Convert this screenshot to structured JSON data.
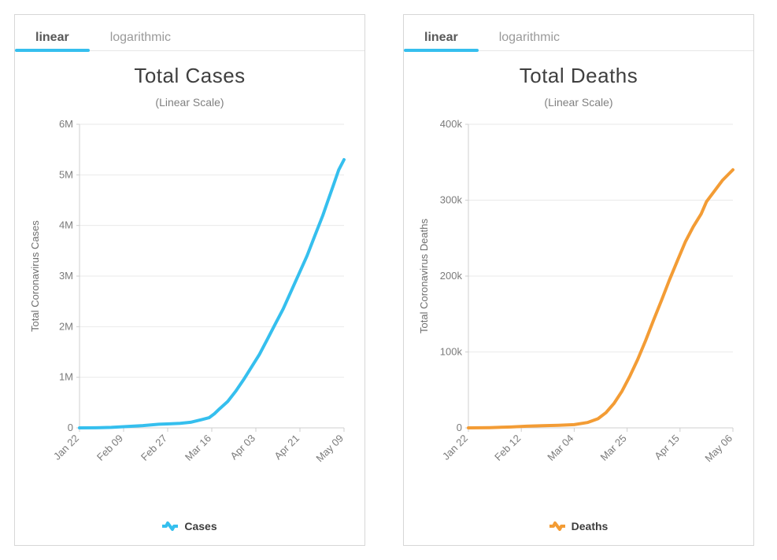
{
  "panels": [
    {
      "id": "cases",
      "tabs": {
        "linear": "linear",
        "log": "logarithmic",
        "active": "linear"
      },
      "accent": "#35bfee",
      "chart": {
        "type": "line",
        "title": "Total Cases",
        "subtitle": "(Linear Scale)",
        "ylabel": "Total Coronavirus Cases",
        "legend_label": "Cases",
        "ylim": [
          0,
          6000000
        ],
        "ytick_step": 1000000,
        "ytick_labels": [
          "0",
          "1M",
          "2M",
          "3M",
          "4M",
          "5M",
          "6M"
        ],
        "x_categories": [
          "Jan 22",
          "Feb 09",
          "Feb 27",
          "Mar 16",
          "Apr 03",
          "Apr 21",
          "May 09"
        ],
        "series_color": "#35bfee",
        "line_width": 4,
        "background_color": "#ffffff",
        "grid_color": "#eaeaea",
        "axis_color": "#cfcfcf",
        "label_fontsize": 13,
        "title_fontsize": 26,
        "data": [
          {
            "x": 0.0,
            "y": 500
          },
          {
            "x": 0.06,
            "y": 2000
          },
          {
            "x": 0.12,
            "y": 10000
          },
          {
            "x": 0.18,
            "y": 28000
          },
          {
            "x": 0.24,
            "y": 45000
          },
          {
            "x": 0.3,
            "y": 72000
          },
          {
            "x": 0.34,
            "y": 80000
          },
          {
            "x": 0.38,
            "y": 88000
          },
          {
            "x": 0.42,
            "y": 110000
          },
          {
            "x": 0.46,
            "y": 160000
          },
          {
            "x": 0.49,
            "y": 200000
          },
          {
            "x": 0.51,
            "y": 280000
          },
          {
            "x": 0.53,
            "y": 380000
          },
          {
            "x": 0.56,
            "y": 520000
          },
          {
            "x": 0.59,
            "y": 720000
          },
          {
            "x": 0.62,
            "y": 950000
          },
          {
            "x": 0.65,
            "y": 1200000
          },
          {
            "x": 0.68,
            "y": 1450000
          },
          {
            "x": 0.71,
            "y": 1750000
          },
          {
            "x": 0.74,
            "y": 2050000
          },
          {
            "x": 0.77,
            "y": 2350000
          },
          {
            "x": 0.8,
            "y": 2700000
          },
          {
            "x": 0.83,
            "y": 3050000
          },
          {
            "x": 0.86,
            "y": 3400000
          },
          {
            "x": 0.89,
            "y": 3800000
          },
          {
            "x": 0.92,
            "y": 4200000
          },
          {
            "x": 0.94,
            "y": 4500000
          },
          {
            "x": 0.96,
            "y": 4800000
          },
          {
            "x": 0.98,
            "y": 5100000
          },
          {
            "x": 1.0,
            "y": 5300000
          }
        ]
      }
    },
    {
      "id": "deaths",
      "tabs": {
        "linear": "linear",
        "log": "logarithmic",
        "active": "linear"
      },
      "accent": "#35bfee",
      "chart": {
        "type": "line",
        "title": "Total Deaths",
        "subtitle": "(Linear Scale)",
        "ylabel": "Total Coronavirus Deaths",
        "legend_label": "Deaths",
        "ylim": [
          0,
          400000
        ],
        "ytick_step": 100000,
        "ytick_labels": [
          "0",
          "100k",
          "200k",
          "300k",
          "400k"
        ],
        "x_categories": [
          "Jan 22",
          "Feb 12",
          "Mar 04",
          "Mar 25",
          "Apr 15",
          "May 06"
        ],
        "series_color": "#f39c35",
        "line_width": 4,
        "background_color": "#ffffff",
        "grid_color": "#eaeaea",
        "axis_color": "#cfcfcf",
        "label_fontsize": 13,
        "title_fontsize": 26,
        "data": [
          {
            "x": 0.0,
            "y": 20
          },
          {
            "x": 0.08,
            "y": 300
          },
          {
            "x": 0.16,
            "y": 1100
          },
          {
            "x": 0.22,
            "y": 2200
          },
          {
            "x": 0.28,
            "y": 2900
          },
          {
            "x": 0.34,
            "y": 3400
          },
          {
            "x": 0.4,
            "y": 4300
          },
          {
            "x": 0.45,
            "y": 7000
          },
          {
            "x": 0.49,
            "y": 12000
          },
          {
            "x": 0.52,
            "y": 20000
          },
          {
            "x": 0.55,
            "y": 32000
          },
          {
            "x": 0.58,
            "y": 48000
          },
          {
            "x": 0.61,
            "y": 68000
          },
          {
            "x": 0.64,
            "y": 90000
          },
          {
            "x": 0.67,
            "y": 115000
          },
          {
            "x": 0.7,
            "y": 142000
          },
          {
            "x": 0.73,
            "y": 168000
          },
          {
            "x": 0.76,
            "y": 195000
          },
          {
            "x": 0.79,
            "y": 220000
          },
          {
            "x": 0.82,
            "y": 245000
          },
          {
            "x": 0.85,
            "y": 265000
          },
          {
            "x": 0.88,
            "y": 282000
          },
          {
            "x": 0.9,
            "y": 298000
          },
          {
            "x": 0.93,
            "y": 312000
          },
          {
            "x": 0.96,
            "y": 326000
          },
          {
            "x": 1.0,
            "y": 340000
          }
        ]
      }
    }
  ]
}
